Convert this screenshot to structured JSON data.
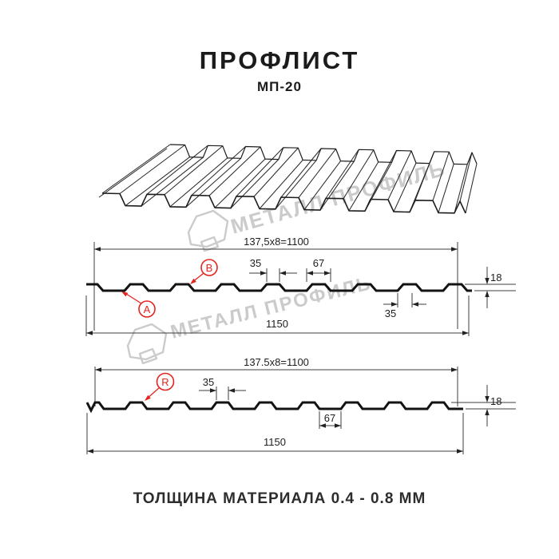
{
  "page": {
    "title": "ПРОФЛИСТ",
    "subtitle": "МП-20",
    "footer": "ТОЛЩИНА МАТЕРИАЛА 0.4 - 0.8 ММ"
  },
  "watermark": {
    "text": "МЕТАЛЛ ПРОФИЛЬ",
    "logo": "metall-profil-logo"
  },
  "colors": {
    "accent_red": "#e3241f",
    "line": "#1a1a1a",
    "watermark": "#cbcbcb"
  },
  "drawing_front": {
    "dim_pitch": "137,5x8=1100",
    "dim_rib_top": "35",
    "dim_rib_base": "67",
    "dim_rib_bottom": "35",
    "dim_height": "18",
    "dim_overall": "1150",
    "label_a": "A",
    "label_b": "B"
  },
  "drawing_reverse": {
    "dim_pitch": "137.5x8=1100",
    "dim_rib_top": "35",
    "dim_flat": "67",
    "dim_height": "18",
    "dim_overall": "1150",
    "label_r": "R"
  }
}
